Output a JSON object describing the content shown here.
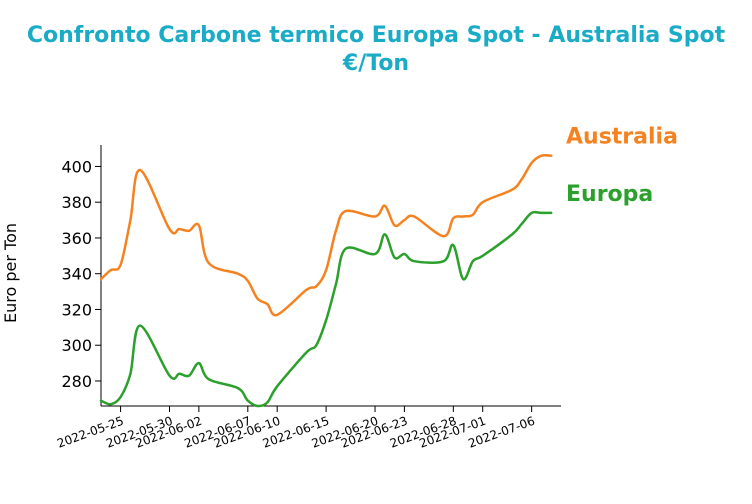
{
  "chart_data": {
    "type": "line",
    "title": "Confronto Carbone termico Europa Spot - Australia Spot €/Ton",
    "ylabel": "Euro per Ton",
    "xlabel": "",
    "ylim": [
      266,
      412
    ],
    "yticks": [
      280,
      300,
      320,
      340,
      360,
      380,
      400
    ],
    "xticks": [
      "2022-05-25",
      "2022-05-30",
      "2022-06-02",
      "2022-06-07",
      "2022-06-10",
      "2022-06-15",
      "2022-06-20",
      "2022-06-23",
      "2022-06-28",
      "2022-07-01",
      "2022-07-06"
    ],
    "x": [
      "2022-05-23",
      "2022-05-24",
      "2022-05-25",
      "2022-05-26",
      "2022-05-27",
      "2022-05-30",
      "2022-05-31",
      "2022-06-01",
      "2022-06-02",
      "2022-06-03",
      "2022-06-06",
      "2022-06-07",
      "2022-06-08",
      "2022-06-09",
      "2022-06-10",
      "2022-06-13",
      "2022-06-14",
      "2022-06-15",
      "2022-06-16",
      "2022-06-17",
      "2022-06-20",
      "2022-06-21",
      "2022-06-22",
      "2022-06-23",
      "2022-06-24",
      "2022-06-27",
      "2022-06-28",
      "2022-06-29",
      "2022-06-30",
      "2022-07-01",
      "2022-07-04",
      "2022-07-05",
      "2022-07-06",
      "2022-07-07",
      "2022-07-08"
    ],
    "series": [
      {
        "name": "Australia",
        "color": "#f58220",
        "values": [
          337,
          342,
          345,
          370,
          398,
          365,
          365,
          364,
          367,
          346,
          340,
          336,
          326,
          323,
          317,
          331,
          333,
          342,
          364,
          375,
          372,
          378,
          367,
          370,
          372,
          361,
          371,
          372,
          373,
          380,
          387,
          393,
          402,
          406,
          406
        ]
      },
      {
        "name": "Europa",
        "color": "#2ca02c",
        "values": [
          269,
          267,
          271,
          284,
          311,
          283,
          284,
          283,
          290,
          281,
          276,
          269,
          266,
          268,
          277,
          296,
          300,
          314,
          334,
          354,
          351,
          362,
          349,
          351,
          347,
          347,
          356,
          337,
          347,
          350,
          362,
          368,
          374,
          374,
          374
        ]
      }
    ],
    "grid": false,
    "legend": "direct labels at line ends (right)"
  }
}
